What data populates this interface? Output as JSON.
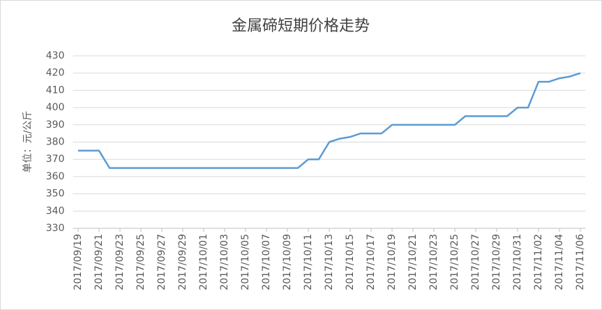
{
  "chart_data": {
    "type": "line",
    "title": "金属碲短期价格走势",
    "y_label": "单位：元/公斤",
    "categories": [
      "2017/09/19",
      null,
      "2017/09/21",
      null,
      "2017/09/23",
      null,
      "2017/09/25",
      null,
      "2017/09/27",
      null,
      "2017/09/29",
      null,
      "2017/10/01",
      null,
      "2017/10/03",
      null,
      "2017/10/05",
      null,
      "2017/10/07",
      null,
      "2017/10/09",
      null,
      "2017/10/11",
      null,
      "2017/10/13",
      null,
      "2017/10/15",
      null,
      "2017/10/17",
      null,
      "2017/10/19",
      null,
      "2017/10/21",
      null,
      "2017/10/23",
      null,
      "2017/10/25",
      null,
      "2017/10/27",
      null,
      "2017/10/29",
      null,
      "2017/10/31",
      null,
      "2017/11/02",
      null,
      "2017/11/04",
      null,
      "2017/11/06"
    ],
    "values": [
      375,
      375,
      375,
      365,
      365,
      365,
      365,
      365,
      365,
      365,
      365,
      365,
      365,
      365,
      365,
      365,
      365,
      365,
      365,
      365,
      365,
      365,
      370,
      370,
      380,
      382,
      383,
      385,
      385,
      385,
      390,
      390,
      390,
      390,
      390,
      390,
      390,
      395,
      395,
      395,
      395,
      395,
      400,
      400,
      415,
      415,
      417,
      418,
      420
    ],
    "color": "#5b9bd5",
    "ylim": [
      330,
      430
    ],
    "yticks": [
      330,
      340,
      350,
      360,
      370,
      380,
      390,
      400,
      410,
      420,
      430
    ],
    "grid": true
  }
}
